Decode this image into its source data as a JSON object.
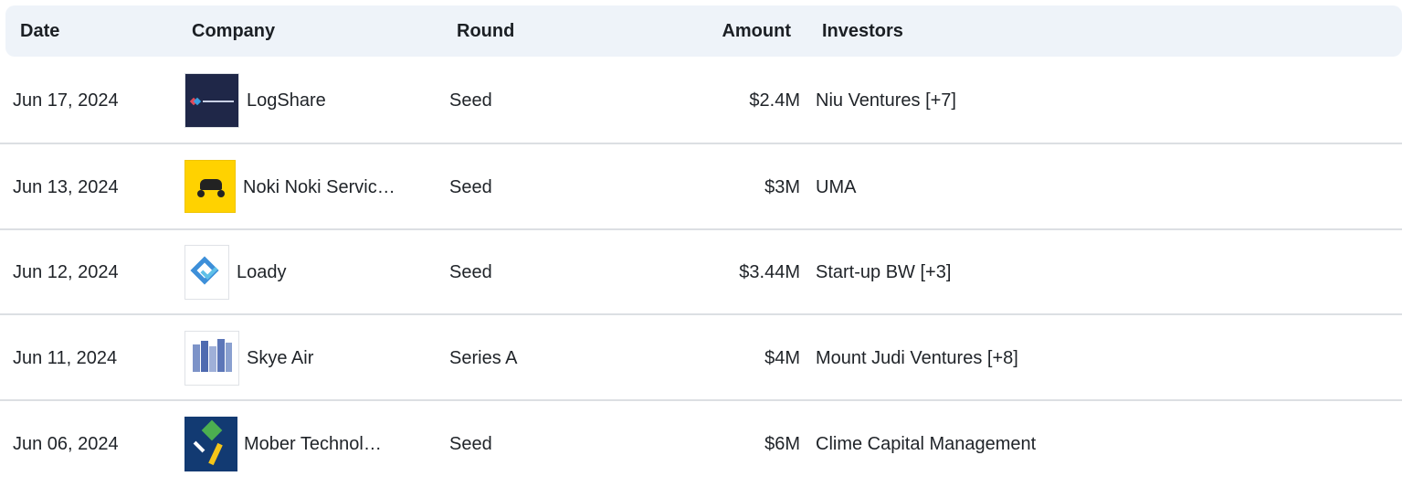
{
  "table": {
    "columns": [
      "Date",
      "Company",
      "Round",
      "Amount",
      "Investors"
    ],
    "rows": [
      [
        "Jun 17, 2024",
        "LogShare",
        "Seed",
        "$2.4M",
        "Niu Ventures [+7]"
      ],
      [
        "Jun 13, 2024",
        "Noki Noki Servic…",
        "Seed",
        "$3M",
        "UMA"
      ],
      [
        "Jun 12, 2024",
        "Loady",
        "Seed",
        "$3.44M",
        "Start-up BW [+3]"
      ],
      [
        "Jun 11, 2024",
        "Skye Air",
        "Series A",
        "$4M",
        "Mount Judi Ventures [+8]"
      ],
      [
        "Jun 06, 2024",
        "Mober Technol…",
        "Seed",
        "$6M",
        "Clime Capital Management"
      ]
    ]
  }
}
